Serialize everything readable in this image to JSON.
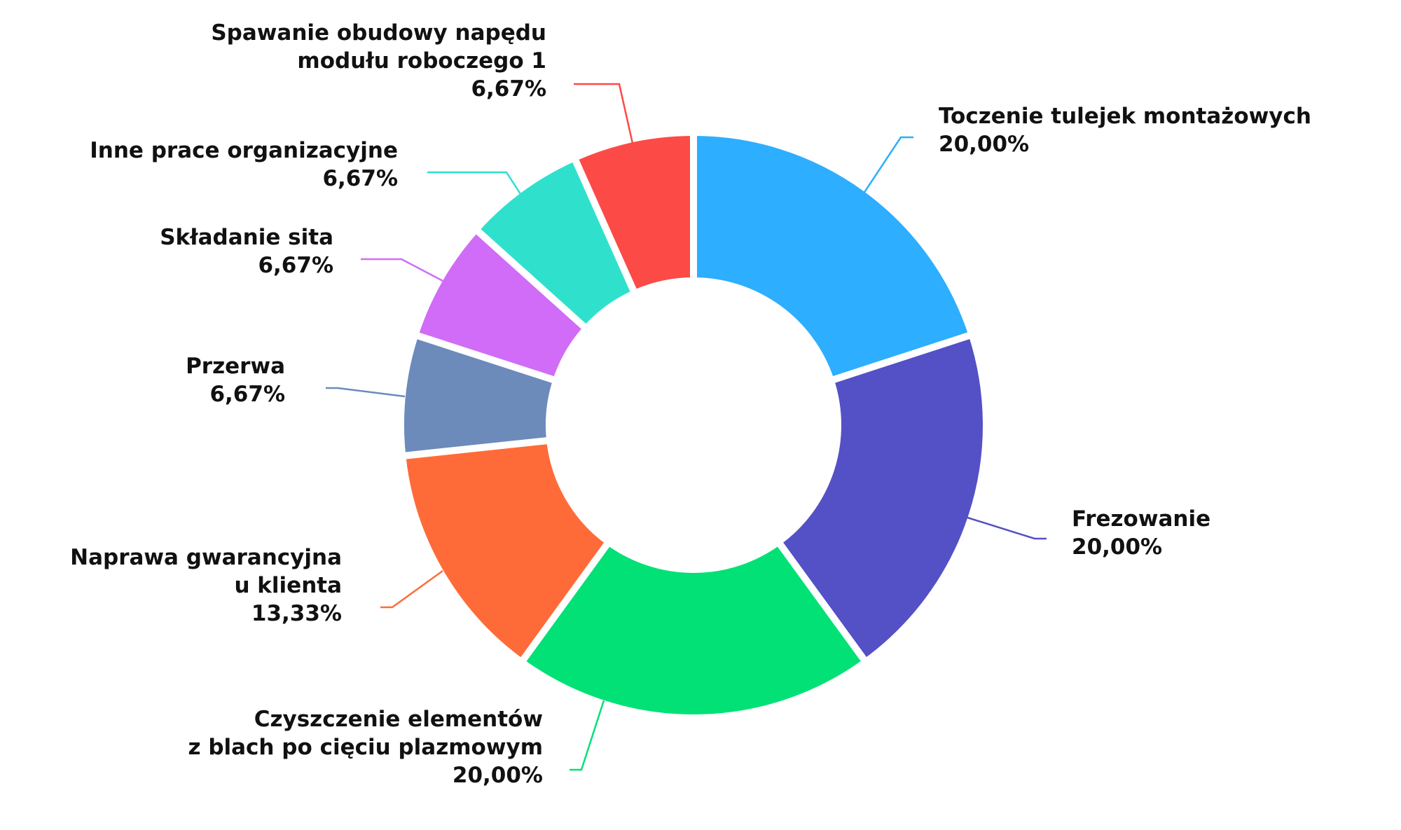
{
  "chart_data": {
    "type": "pie",
    "donut": true,
    "start_at": "top",
    "direction": "clockwise",
    "slices": [
      {
        "label_lines": [
          "Toczenie tulejek montażowych"
        ],
        "value": 20.0,
        "value_text": "20,00%",
        "color": "#2DAEFF"
      },
      {
        "label_lines": [
          "Frezowanie"
        ],
        "value": 20.0,
        "value_text": "20,00%",
        "color": "#5450C6"
      },
      {
        "label_lines": [
          "Czyszczenie elementów",
          "z blach po cięciu plazmowym"
        ],
        "value": 20.0,
        "value_text": "20,00%",
        "color": "#02E176"
      },
      {
        "label_lines": [
          "Naprawa gwarancyjna",
          "u klienta"
        ],
        "value": 13.33,
        "value_text": "13,33%",
        "color": "#FF6B38"
      },
      {
        "label_lines": [
          "Przerwa"
        ],
        "value": 6.67,
        "value_text": "6,67%",
        "color": "#6C8BBB"
      },
      {
        "label_lines": [
          "Składanie sita"
        ],
        "value": 6.67,
        "value_text": "6,67%",
        "color": "#D06CF7"
      },
      {
        "label_lines": [
          "Inne prace organizacyjne"
        ],
        "value": 6.67,
        "value_text": "6,67%",
        "color": "#2FE1CD"
      },
      {
        "label_lines": [
          "Spawanie obudowy napędu",
          "modułu roboczego 1"
        ],
        "value": 6.67,
        "value_text": "6,67%",
        "color": "#FC4A47"
      }
    ]
  }
}
